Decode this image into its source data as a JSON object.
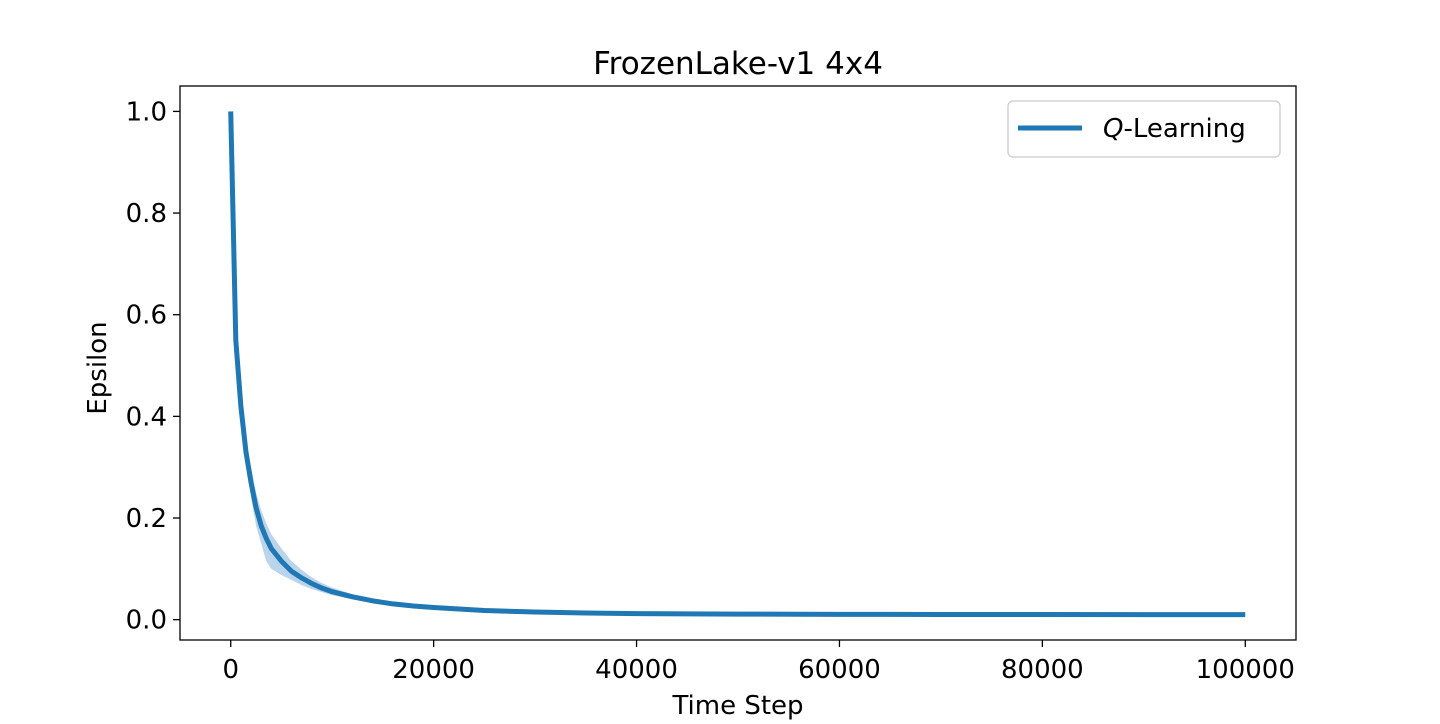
{
  "chart_data": {
    "type": "line",
    "title": "FrozenLake-v1 4x4",
    "xlabel": "Time Step",
    "ylabel": "Epsilon",
    "xlim": [
      -5000,
      105000
    ],
    "ylim": [
      -0.04,
      1.05
    ],
    "xticks": [
      0,
      20000,
      40000,
      60000,
      80000,
      100000
    ],
    "yticks": [
      0.0,
      0.2,
      0.4,
      0.6,
      0.8,
      1.0
    ],
    "xtick_labels": [
      "0",
      "20000",
      "40000",
      "60000",
      "80000",
      "100000"
    ],
    "ytick_labels": [
      "0.0",
      "0.2",
      "0.4",
      "0.6",
      "0.8",
      "1.0"
    ],
    "grid": false,
    "legend_position": "top-right",
    "colors": {
      "line": "#1f77b4",
      "band": "#a9c9e6"
    },
    "series": [
      {
        "name": "Q-Learning",
        "name_italic": "Q",
        "name_rest": "-Learning",
        "x": [
          0,
          500,
          1000,
          1500,
          2000,
          2500,
          3000,
          3500,
          4000,
          5000,
          6000,
          7000,
          8000,
          9000,
          10000,
          12000,
          14000,
          16000,
          18000,
          20000,
          25000,
          30000,
          35000,
          40000,
          50000,
          60000,
          70000,
          80000,
          90000,
          100000
        ],
        "y": [
          1.0,
          0.55,
          0.42,
          0.33,
          0.27,
          0.22,
          0.185,
          0.16,
          0.14,
          0.115,
          0.095,
          0.082,
          0.071,
          0.062,
          0.055,
          0.045,
          0.037,
          0.031,
          0.027,
          0.024,
          0.018,
          0.015,
          0.013,
          0.012,
          0.011,
          0.0105,
          0.0102,
          0.0101,
          0.01,
          0.01
        ],
        "lower": [
          1.0,
          0.55,
          0.42,
          0.31,
          0.24,
          0.185,
          0.15,
          0.115,
          0.1,
          0.088,
          0.078,
          0.068,
          0.06,
          0.054,
          0.048,
          0.04,
          0.033,
          0.028,
          0.025,
          0.022,
          0.017,
          0.014,
          0.012,
          0.011,
          0.0105,
          0.0102,
          0.0101,
          0.01,
          0.01,
          0.01
        ],
        "upper": [
          1.0,
          0.55,
          0.43,
          0.35,
          0.3,
          0.25,
          0.215,
          0.19,
          0.168,
          0.14,
          0.115,
          0.098,
          0.083,
          0.072,
          0.063,
          0.05,
          0.041,
          0.034,
          0.029,
          0.026,
          0.019,
          0.016,
          0.014,
          0.0125,
          0.0115,
          0.011,
          0.0105,
          0.0102,
          0.0101,
          0.0101
        ]
      }
    ]
  }
}
